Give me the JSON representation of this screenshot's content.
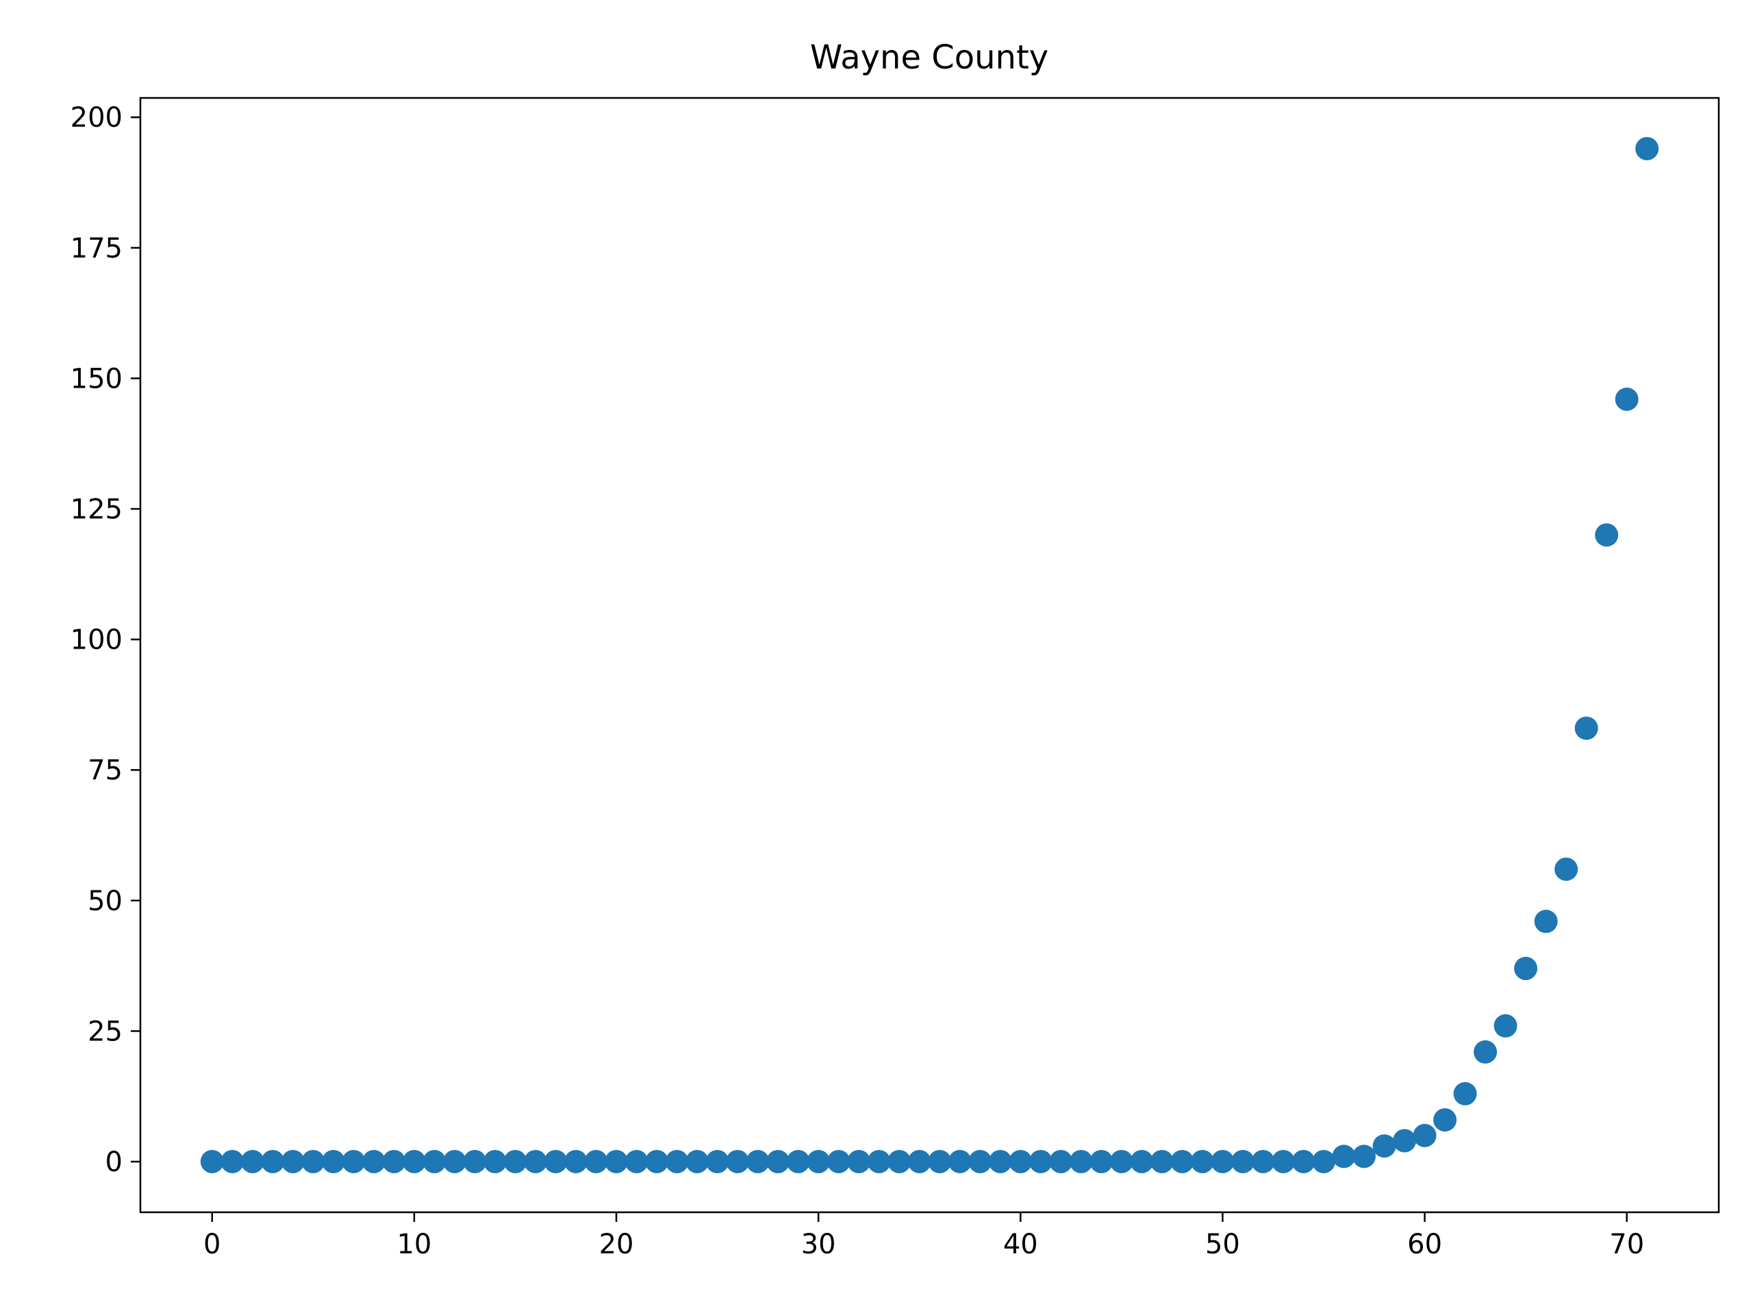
{
  "chart_data": {
    "type": "scatter",
    "title": "Wayne County",
    "xlabel": "",
    "ylabel": "",
    "xlim": [
      -3.55,
      74.55
    ],
    "ylim": [
      -9.7,
      203.7
    ],
    "xticks": [
      0,
      10,
      20,
      30,
      40,
      50,
      60,
      70
    ],
    "yticks": [
      0,
      25,
      50,
      75,
      100,
      125,
      150,
      175,
      200
    ],
    "grid": false,
    "legend": "none",
    "marker_color": "#1f77b4",
    "x": [
      0,
      1,
      2,
      3,
      4,
      5,
      6,
      7,
      8,
      9,
      10,
      11,
      12,
      13,
      14,
      15,
      16,
      17,
      18,
      19,
      20,
      21,
      22,
      23,
      24,
      25,
      26,
      27,
      28,
      29,
      30,
      31,
      32,
      33,
      34,
      35,
      36,
      37,
      38,
      39,
      40,
      41,
      42,
      43,
      44,
      45,
      46,
      47,
      48,
      49,
      50,
      51,
      52,
      53,
      54,
      55,
      56,
      57,
      58,
      59,
      60,
      61,
      62,
      63,
      64,
      65,
      66,
      67,
      68,
      69,
      70,
      71
    ],
    "y": [
      0,
      0,
      0,
      0,
      0,
      0,
      0,
      0,
      0,
      0,
      0,
      0,
      0,
      0,
      0,
      0,
      0,
      0,
      0,
      0,
      0,
      0,
      0,
      0,
      0,
      0,
      0,
      0,
      0,
      0,
      0,
      0,
      0,
      0,
      0,
      0,
      0,
      0,
      0,
      0,
      0,
      0,
      0,
      0,
      0,
      0,
      0,
      0,
      0,
      0,
      0,
      0,
      0,
      0,
      0,
      0,
      1,
      1,
      3,
      4,
      5,
      8,
      13,
      21,
      26,
      37,
      46,
      56,
      83,
      120,
      146,
      194
    ]
  }
}
